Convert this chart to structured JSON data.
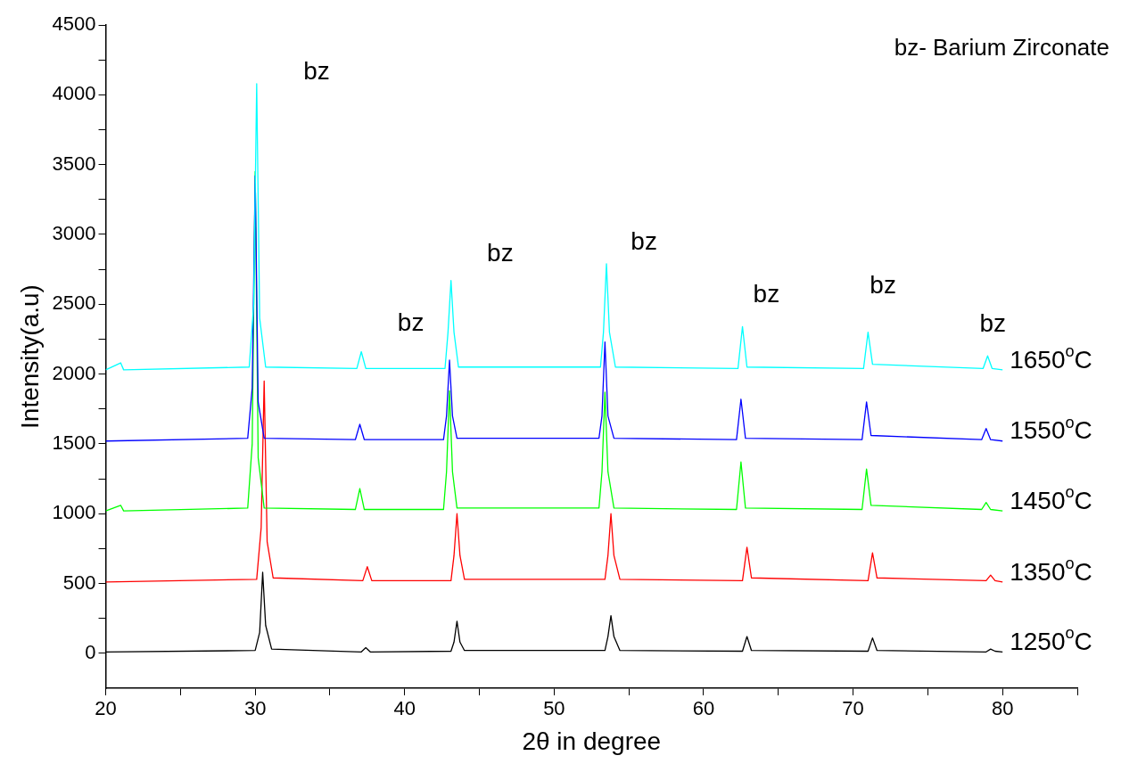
{
  "chart_data": {
    "type": "line",
    "xlabel": "2θ in degree",
    "ylabel": "Intensity(a.u)",
    "xlim": [
      20,
      85
    ],
    "ylim": [
      -250,
      4500
    ],
    "xticks": [
      20,
      {
        "value": 25,
        "label": null
      },
      30,
      {
        "value": 35,
        "label": null
      },
      40,
      {
        "value": 45,
        "label": null
      },
      50,
      {
        "value": 55,
        "label": null
      },
      60,
      {
        "value": 65,
        "label": null
      },
      70,
      {
        "value": 75,
        "label": null
      },
      80,
      {
        "value": 85,
        "label": null
      }
    ],
    "yticks": [
      0,
      {
        "value": 250,
        "label": null
      },
      500,
      {
        "value": 750,
        "label": null
      },
      1000,
      {
        "value": 1250,
        "label": null
      },
      1500,
      {
        "value": 1750,
        "label": null
      },
      2000,
      {
        "value": 2250,
        "label": null
      },
      2500,
      {
        "value": 2750,
        "label": null
      },
      3000,
      {
        "value": 3250,
        "label": null
      },
      3500,
      {
        "value": 3750,
        "label": null
      },
      4000,
      {
        "value": 4250,
        "label": null
      },
      4500
    ],
    "grid": false,
    "legend": false,
    "series": [
      {
        "name": "1250$^{o}$C",
        "color": "#000000",
        "x": [
          20,
          30.0,
          30.3,
          30.5,
          30.7,
          31.1,
          37.1,
          37.4,
          37.7,
          43.1,
          43.3,
          43.5,
          43.7,
          44.0,
          53.4,
          53.6,
          53.8,
          54.0,
          54.4,
          62.6,
          62.9,
          63.2,
          71.0,
          71.3,
          71.6,
          78.9,
          79.2,
          79.5,
          80
        ],
        "values": [
          10,
          20,
          150,
          580,
          200,
          30,
          10,
          40,
          10,
          15,
          80,
          230,
          80,
          20,
          20,
          120,
          270,
          120,
          20,
          15,
          120,
          20,
          15,
          110,
          20,
          10,
          30,
          15,
          10
        ]
      },
      {
        "name": "1350$^{o}$C",
        "color": "#ff0000",
        "x": [
          20,
          30.1,
          30.4,
          30.6,
          30.8,
          31.2,
          37.2,
          37.5,
          37.8,
          43.1,
          43.3,
          43.5,
          43.7,
          44.0,
          53.4,
          53.6,
          53.8,
          54.0,
          54.4,
          62.6,
          62.9,
          63.2,
          71.0,
          71.3,
          71.6,
          78.9,
          79.2,
          79.5,
          80
        ],
        "values": [
          510,
          530,
          900,
          1950,
          800,
          540,
          520,
          620,
          520,
          520,
          700,
          1000,
          700,
          530,
          530,
          700,
          1000,
          700,
          530,
          520,
          760,
          540,
          520,
          720,
          540,
          520,
          560,
          520,
          510
        ]
      },
      {
        "name": "1450$^{o}$C",
        "color": "#00ff00",
        "x": [
          20,
          21.0,
          21.2,
          29.5,
          29.8,
          30.0,
          30.2,
          30.6,
          36.7,
          37.0,
          37.3,
          42.6,
          42.8,
          43.0,
          43.2,
          43.5,
          53.0,
          53.2,
          53.4,
          53.6,
          54.0,
          62.2,
          62.5,
          62.8,
          70.6,
          70.9,
          71.2,
          78.6,
          78.9,
          79.2,
          80
        ],
        "values": [
          1020,
          1060,
          1020,
          1040,
          1500,
          3450,
          1400,
          1040,
          1030,
          1180,
          1030,
          1030,
          1300,
          1880,
          1300,
          1040,
          1040,
          1300,
          1870,
          1300,
          1040,
          1030,
          1370,
          1040,
          1030,
          1320,
          1060,
          1030,
          1080,
          1030,
          1020
        ]
      },
      {
        "name": "1550$^{o}$C",
        "color": "#0000ff",
        "x": [
          20,
          29.5,
          29.8,
          30.0,
          30.2,
          30.6,
          36.7,
          37.0,
          37.3,
          42.6,
          42.8,
          43.0,
          43.2,
          43.5,
          53.0,
          53.2,
          53.4,
          53.6,
          54.0,
          62.2,
          62.5,
          62.8,
          70.6,
          70.9,
          71.2,
          78.6,
          78.9,
          79.2,
          80
        ],
        "values": [
          1520,
          1540,
          1900,
          3420,
          1800,
          1540,
          1530,
          1640,
          1530,
          1530,
          1700,
          2100,
          1700,
          1540,
          1540,
          1700,
          2230,
          1700,
          1540,
          1530,
          1820,
          1540,
          1530,
          1800,
          1560,
          1530,
          1610,
          1530,
          1520
        ]
      },
      {
        "name": "1650$^{o}$C",
        "color": "#00ffff",
        "x": [
          20,
          21.0,
          21.2,
          29.6,
          29.9,
          30.1,
          30.3,
          30.7,
          36.8,
          37.1,
          37.4,
          42.7,
          42.9,
          43.1,
          43.3,
          43.6,
          53.1,
          53.3,
          53.5,
          53.7,
          54.1,
          62.3,
          62.6,
          62.9,
          70.7,
          71.0,
          71.3,
          78.7,
          79.0,
          79.3,
          80
        ],
        "values": [
          2030,
          2080,
          2030,
          2050,
          2500,
          4080,
          2400,
          2050,
          2040,
          2160,
          2040,
          2040,
          2300,
          2670,
          2300,
          2050,
          2050,
          2300,
          2790,
          2300,
          2050,
          2040,
          2340,
          2050,
          2040,
          2300,
          2070,
          2040,
          2130,
          2040,
          2030
        ]
      }
    ],
    "annotations": [
      "bz- Barium Zirconate",
      "bz",
      "bz",
      "bz",
      "bz",
      "bz",
      "bz",
      "bz"
    ]
  }
}
